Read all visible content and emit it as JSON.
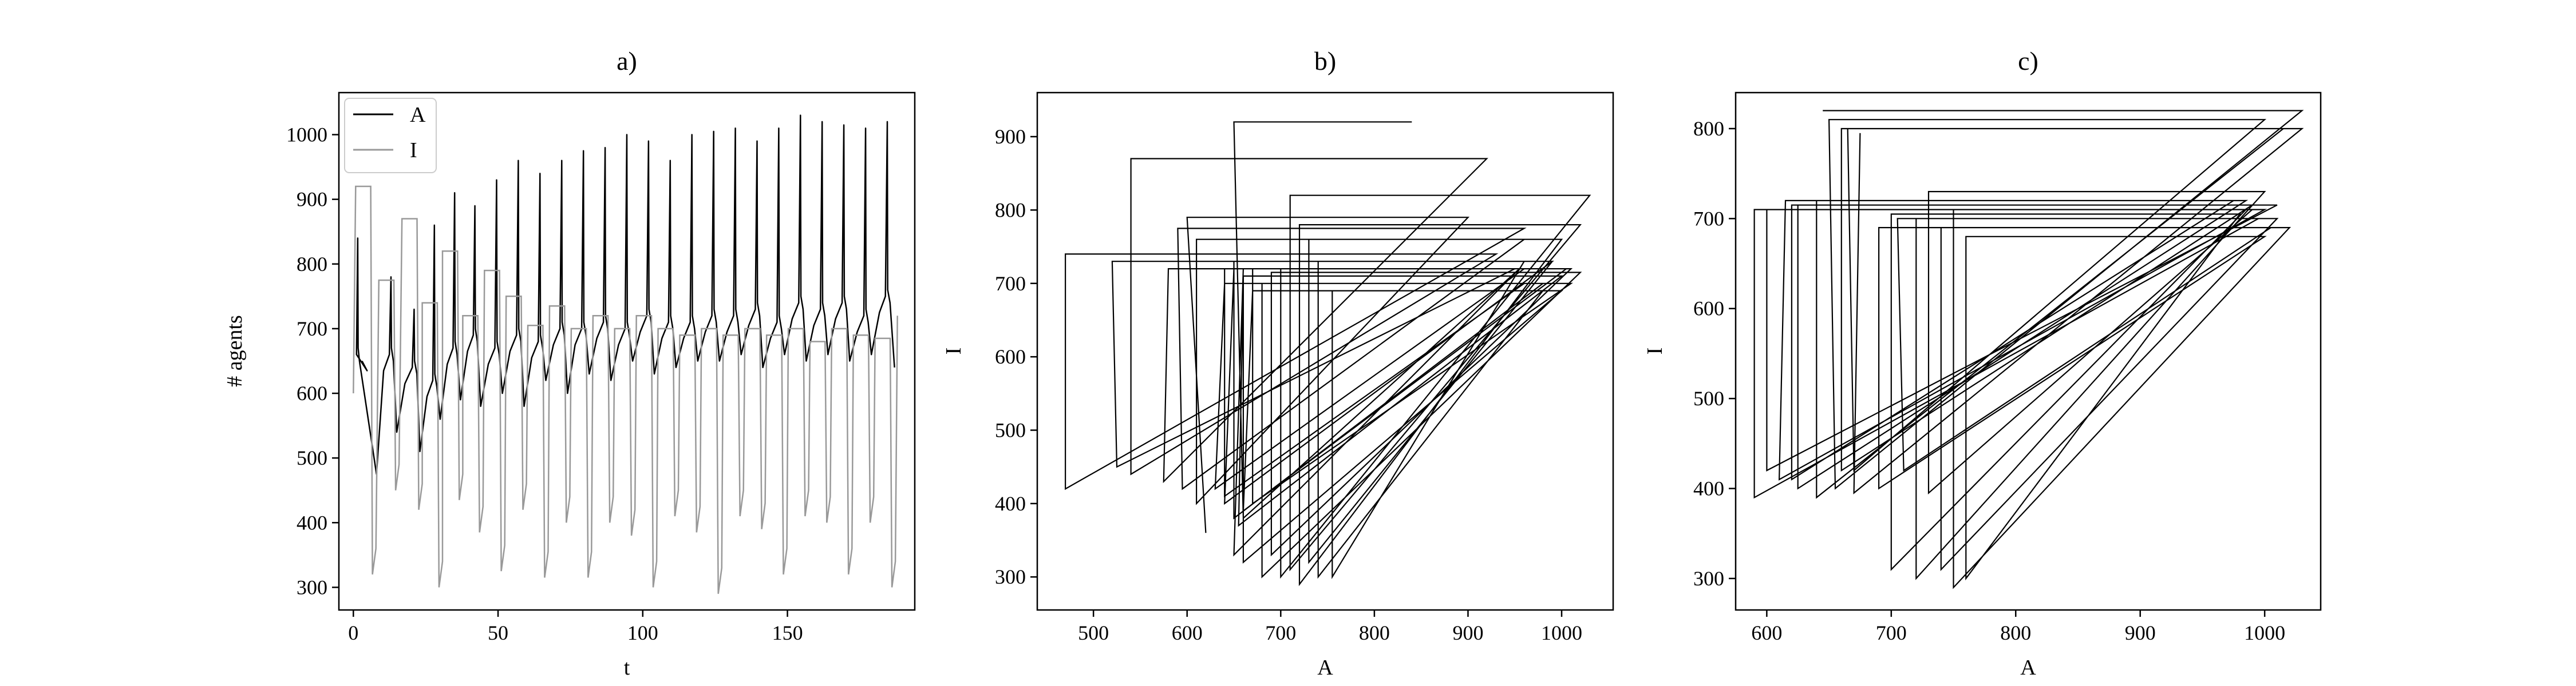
{
  "chart_data": [
    {
      "id": "a",
      "type": "line",
      "title": "a)",
      "xlabel": "t",
      "ylabel": "# agents",
      "xlim": [
        -5,
        194
      ],
      "ylim": [
        265,
        1065
      ],
      "xticks": [
        0,
        50,
        100,
        150
      ],
      "yticks": [
        300,
        400,
        500,
        600,
        700,
        800,
        900,
        1000
      ],
      "legend": "top-left",
      "grid": false,
      "series": [
        {
          "name": "A",
          "color": "#000000",
          "peaks_t": [
            1.5,
            13,
            21,
            28,
            35,
            42,
            49.5,
            57,
            64.5,
            72,
            79.5,
            87,
            94.5,
            102,
            109.5,
            117,
            124.5,
            132,
            139.5,
            147,
            154.5,
            162,
            169.5,
            177,
            184.5
          ],
          "peaks": [
            840,
            780,
            730,
            860,
            910,
            890,
            930,
            960,
            940,
            960,
            975,
            980,
            1000,
            990,
            960,
            1000,
            1005,
            1010,
            990,
            1010,
            1030,
            1020,
            1015,
            1010,
            1020
          ],
          "troughs_t": [
            3,
            8,
            15,
            23,
            30,
            37,
            44,
            51.5,
            59,
            66.5,
            74,
            81.5,
            89,
            96.5,
            104,
            111.5,
            119,
            126.5,
            134,
            141.5,
            149,
            156.5,
            164,
            171.5,
            179,
            187
          ],
          "troughs": [
            650,
            475,
            540,
            510,
            560,
            590,
            580,
            600,
            580,
            620,
            600,
            630,
            620,
            650,
            630,
            640,
            650,
            650,
            660,
            640,
            660,
            650,
            660,
            650,
            660,
            640
          ],
          "shoulders": [
            660,
            660,
            640,
            620,
            670,
            690,
            670,
            690,
            680,
            700,
            700,
            710,
            700,
            720,
            710,
            710,
            720,
            720,
            730,
            710,
            740,
            730,
            740,
            720,
            750
          ]
        },
        {
          "name": "I",
          "color": "#999999",
          "drops_t": [
            6,
            14,
            22,
            29,
            36,
            43,
            50.5,
            58,
            65.5,
            73,
            80.5,
            88,
            95.5,
            103,
            110.5,
            118,
            125.5,
            133,
            140.5,
            148,
            155.5,
            163,
            170.5,
            178,
            185.5
          ],
          "highs": [
            920,
            775,
            870,
            740,
            820,
            720,
            790,
            750,
            705,
            735,
            700,
            720,
            700,
            720,
            700,
            690,
            700,
            690,
            700,
            690,
            700,
            680,
            700,
            690,
            685
          ],
          "lows": [
            320,
            450,
            420,
            300,
            435,
            385,
            325,
            420,
            315,
            400,
            315,
            400,
            380,
            300,
            410,
            385,
            290,
            410,
            390,
            320,
            410,
            400,
            320,
            400,
            300
          ]
        }
      ]
    },
    {
      "id": "b",
      "type": "line",
      "title": "b)",
      "xlabel": "A",
      "ylabel": "I",
      "xlim": [
        440,
        1055
      ],
      "ylim": [
        255,
        960
      ],
      "xticks": [
        500,
        600,
        700,
        800,
        900,
        1000
      ],
      "yticks": [
        300,
        400,
        500,
        600,
        700,
        800,
        900
      ],
      "grid": false,
      "series": [
        {
          "name": "",
          "color": "#000000",
          "x": [
            840,
            650,
            660,
            955,
            660,
            650,
            955,
            640,
            640,
            960,
            640,
            630,
            960,
            650,
            640,
            990,
            650,
            650,
            980,
            660,
            655,
            1000,
            660,
            660,
            1000,
            670,
            660,
            1005,
            670,
            670,
            1010,
            680,
            680,
            1020,
            690,
            690,
            1010,
            700,
            700,
            1030,
            710,
            710,
            1020,
            720,
            720,
            1000,
            730,
            730,
            990,
            740,
            740,
            980,
            755,
            755,
            960,
            520,
            525,
            950,
            580,
            575,
            920,
            540,
            540,
            930,
            470,
            470,
            960,
            590,
            595,
            960,
            610,
            610,
            900,
            600,
            620
          ],
          "y": [
            920,
            920,
            380,
            720,
            720,
            330,
            720,
            720,
            410,
            700,
            700,
            420,
            720,
            720,
            400,
            730,
            730,
            380,
            700,
            700,
            370,
            710,
            710,
            320,
            690,
            690,
            390,
            720,
            720,
            400,
            700,
            700,
            300,
            715,
            715,
            330,
            720,
            720,
            300,
            820,
            820,
            310,
            780,
            780,
            290,
            760,
            760,
            320,
            730,
            730,
            300,
            690,
            690,
            300,
            730,
            730,
            450,
            720,
            720,
            430,
            870,
            870,
            440,
            740,
            740,
            420,
            775,
            775,
            420,
            760,
            760,
            400,
            790,
            790,
            360
          ]
        }
      ]
    },
    {
      "id": "c",
      "type": "line",
      "title": "c)",
      "xlabel": "A",
      "ylabel": "I",
      "xlim": [
        575,
        1045
      ],
      "ylim": [
        265,
        840
      ],
      "xticks": [
        600,
        700,
        800,
        900,
        1000
      ],
      "yticks": [
        300,
        400,
        500,
        600,
        700,
        800
      ],
      "grid": false,
      "series": [
        {
          "name": "",
          "color": "#000000",
          "x": [
            645,
            1030,
            655,
            650,
            1000,
            670,
            665,
            1015,
            640,
            640,
            975,
            620,
            620,
            1010,
            600,
            600,
            990,
            730,
            730,
            1000,
            720,
            720,
            1010,
            740,
            740,
            1020,
            750,
            750,
            985,
            700,
            700,
            980,
            760,
            760,
            1000,
            690,
            690,
            1005,
            710,
            705,
            995,
            590,
            590,
            1000,
            610,
            615,
            985,
            625,
            625,
            990,
            660,
            660,
            1030,
            670,
            675
          ],
          "y": [
            820,
            820,
            400,
            810,
            810,
            420,
            800,
            800,
            390,
            720,
            720,
            410,
            715,
            715,
            420,
            710,
            710,
            395,
            730,
            730,
            300,
            700,
            700,
            310,
            690,
            690,
            290,
            710,
            710,
            310,
            705,
            705,
            300,
            680,
            680,
            400,
            690,
            690,
            420,
            700,
            700,
            390,
            710,
            710,
            410,
            720,
            720,
            400,
            715,
            715,
            420,
            800,
            800,
            395,
            795
          ]
        }
      ]
    }
  ]
}
